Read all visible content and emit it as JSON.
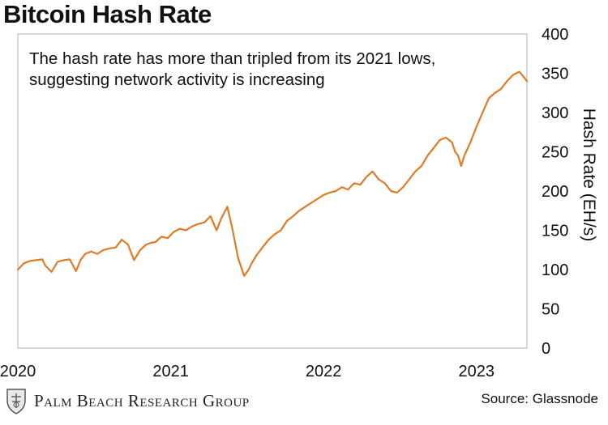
{
  "header": {
    "title": "Bitcoin Hash Rate"
  },
  "footer": {
    "brand": "Palm Beach Research Group",
    "source": "Source: Glassnode"
  },
  "colors": {
    "line": "#E07B26",
    "frame": "#bdbdbd"
  },
  "chart_data": {
    "type": "line",
    "title": "Bitcoin Hash Rate",
    "annotation": [
      "The hash rate has more than tripled from its 2021 lows,",
      "suggesting network activity is increasing"
    ],
    "xlabel": "",
    "ylabel": "Hash Rate (EH/s)",
    "ylim": [
      0,
      400
    ],
    "xlim": [
      2020.0,
      2023.33
    ],
    "y_ticks": [
      0,
      50,
      100,
      150,
      200,
      250,
      300,
      350,
      400
    ],
    "x_ticks": [
      {
        "label": "2020",
        "value": 2020.0
      },
      {
        "label": "2021",
        "value": 2021.0
      },
      {
        "label": "2022",
        "value": 2022.0
      },
      {
        "label": "2023",
        "value": 2023.0
      }
    ],
    "y_axis_position": "right",
    "grid": false,
    "series": [
      {
        "name": "Hash Rate",
        "x": [
          2020.0,
          2020.04,
          2020.08,
          2020.12,
          2020.16,
          2020.18,
          2020.22,
          2020.26,
          2020.3,
          2020.34,
          2020.38,
          2020.41,
          2020.44,
          2020.48,
          2020.52,
          2020.56,
          2020.6,
          2020.64,
          2020.68,
          2020.72,
          2020.76,
          2020.8,
          2020.84,
          2020.87,
          2020.9,
          2020.94,
          2020.98,
          2021.02,
          2021.06,
          2021.1,
          2021.14,
          2021.18,
          2021.22,
          2021.26,
          2021.3,
          2021.33,
          2021.37,
          2021.4,
          2021.44,
          2021.48,
          2021.51,
          2021.53,
          2021.56,
          2021.6,
          2021.64,
          2021.68,
          2021.72,
          2021.76,
          2021.8,
          2021.84,
          2021.88,
          2021.92,
          2021.96,
          2022.0,
          2022.04,
          2022.08,
          2022.12,
          2022.16,
          2022.2,
          2022.24,
          2022.28,
          2022.32,
          2022.36,
          2022.4,
          2022.44,
          2022.48,
          2022.52,
          2022.56,
          2022.6,
          2022.64,
          2022.68,
          2022.72,
          2022.76,
          2022.8,
          2022.84,
          2022.86,
          2022.88,
          2022.9,
          2022.92,
          2022.96,
          2023.0,
          2023.04,
          2023.08,
          2023.12,
          2023.16,
          2023.2,
          2023.24,
          2023.28,
          2023.31,
          2023.33
        ],
        "values": [
          100,
          108,
          111,
          112,
          113,
          105,
          97,
          110,
          112,
          113,
          98,
          112,
          120,
          123,
          120,
          125,
          127,
          128,
          138,
          132,
          112,
          125,
          132,
          134,
          135,
          142,
          140,
          148,
          152,
          150,
          155,
          158,
          160,
          168,
          150,
          165,
          180,
          155,
          115,
          92,
          100,
          108,
          118,
          128,
          138,
          145,
          150,
          162,
          168,
          175,
          180,
          185,
          190,
          195,
          198,
          200,
          205,
          202,
          210,
          208,
          218,
          225,
          215,
          210,
          200,
          198,
          205,
          215,
          225,
          232,
          245,
          255,
          265,
          268,
          262,
          250,
          245,
          232,
          245,
          262,
          282,
          300,
          318,
          325,
          330,
          340,
          348,
          352,
          345,
          340
        ]
      }
    ]
  }
}
